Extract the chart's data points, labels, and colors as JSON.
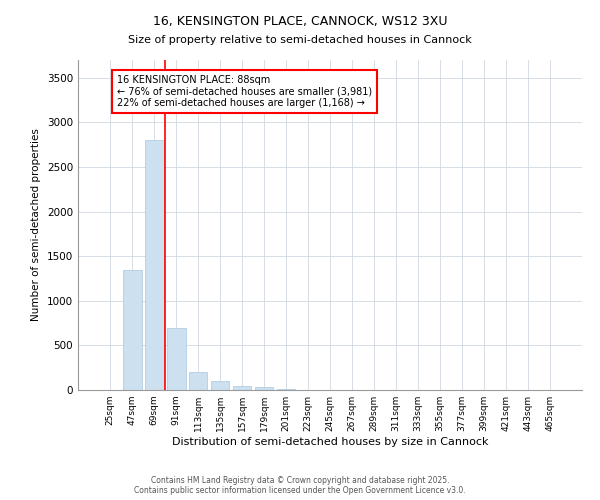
{
  "title1": "16, KENSINGTON PLACE, CANNOCK, WS12 3XU",
  "title2": "Size of property relative to semi-detached houses in Cannock",
  "xlabel": "Distribution of semi-detached houses by size in Cannock",
  "ylabel": "Number of semi-detached properties",
  "categories": [
    "25sqm",
    "47sqm",
    "69sqm",
    "91sqm",
    "113sqm",
    "135sqm",
    "157sqm",
    "179sqm",
    "201sqm",
    "223sqm",
    "245sqm",
    "267sqm",
    "289sqm",
    "311sqm",
    "333sqm",
    "355sqm",
    "377sqm",
    "399sqm",
    "421sqm",
    "443sqm",
    "465sqm"
  ],
  "values": [
    0,
    1350,
    2800,
    700,
    200,
    100,
    50,
    30,
    15,
    5,
    2,
    1,
    0,
    0,
    0,
    0,
    0,
    0,
    0,
    0,
    0
  ],
  "bar_color": "#cce0f0",
  "bar_edge_color": "#a8c8e0",
  "vline_color": "red",
  "annotation_box_text": "16 KENSINGTON PLACE: 88sqm\n← 76% of semi-detached houses are smaller (3,981)\n22% of semi-detached houses are larger (1,168) →",
  "ylim": [
    0,
    3700
  ],
  "grid_color": "#d0d8e0",
  "footer_text": "Contains HM Land Registry data © Crown copyright and database right 2025.\nContains public sector information licensed under the Open Government Licence v3.0.",
  "yticks": [
    0,
    500,
    1000,
    1500,
    2000,
    2500,
    3000,
    3500
  ],
  "title_fontsize": 9,
  "subtitle_fontsize": 8
}
